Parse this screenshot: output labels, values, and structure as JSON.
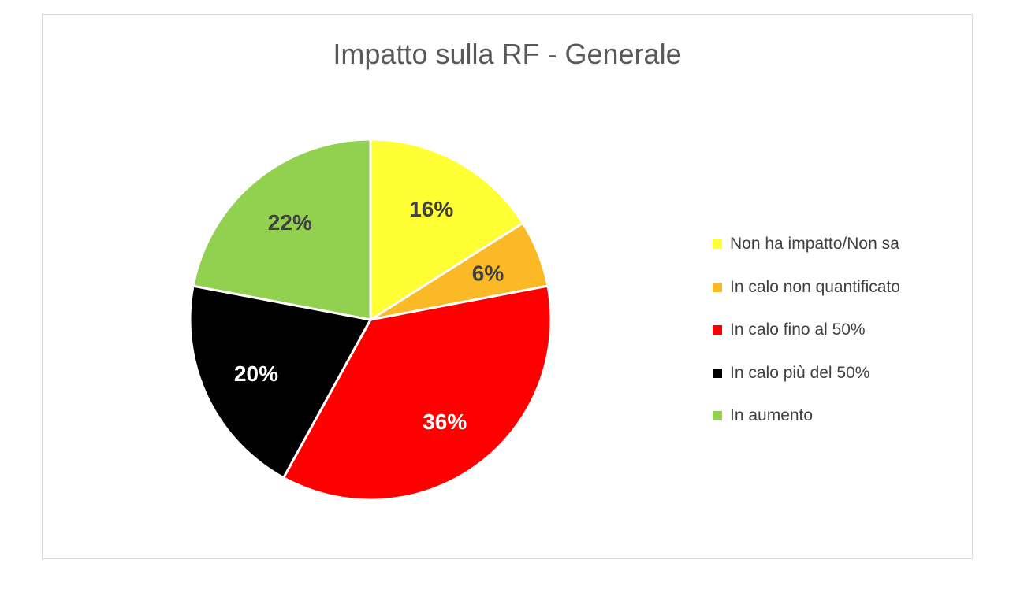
{
  "chart_data": {
    "type": "pie",
    "title": "Impatto sulla RF - Generale",
    "categories": [
      "Non ha impatto/Non sa",
      "In calo non quantificato",
      "In calo fino al 50%",
      "In calo più del 50%",
      "In aumento"
    ],
    "values": [
      16,
      6,
      36,
      20,
      22
    ],
    "labels": [
      "16%",
      "6%",
      "36%",
      "20%",
      "22%"
    ],
    "colors": [
      "#ffff33",
      "#fbb925",
      "#ff0000",
      "#000000",
      "#92d050"
    ],
    "label_colors": [
      "#404040",
      "#404040",
      "#ffffff",
      "#ffffff",
      "#404040"
    ],
    "legend_position": "right"
  }
}
